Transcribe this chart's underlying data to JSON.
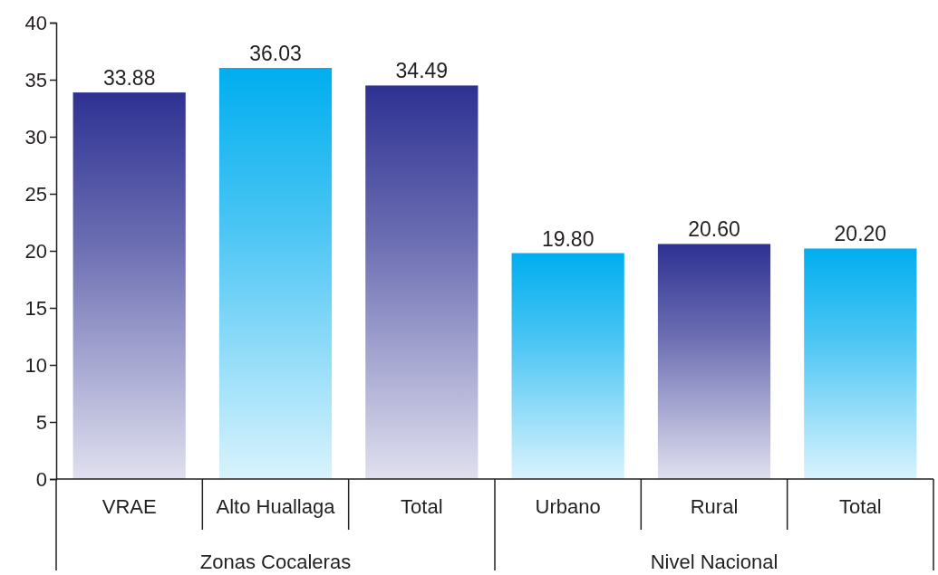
{
  "chart_data": {
    "type": "bar",
    "categories": [
      "VRAE",
      "Alto Huallaga",
      "Total",
      "Urbano",
      "Rural",
      "Total"
    ],
    "values": [
      33.88,
      36.03,
      34.49,
      19.8,
      20.6,
      20.2
    ],
    "value_labels": [
      "33.88",
      "36.03",
      "34.49",
      "19.80",
      "20.60",
      "20.20"
    ],
    "colors": [
      "#2e3192",
      "#00aeef",
      "#2e3192",
      "#00aeef",
      "#2e3192",
      "#00aeef"
    ],
    "ylim": [
      0,
      40
    ],
    "yticks": [
      0,
      5,
      10,
      15,
      20,
      25,
      30,
      35,
      40
    ],
    "annotations": [
      "Zonas Cocaleras",
      "Nivel Nacional"
    ]
  }
}
